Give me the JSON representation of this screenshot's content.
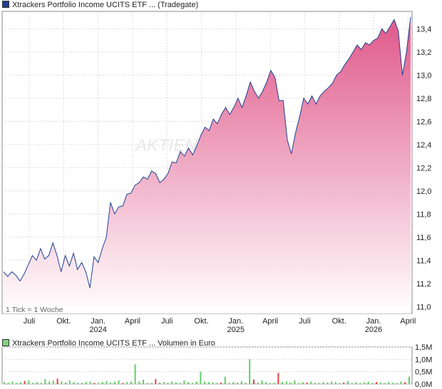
{
  "legend": {
    "price": "Xtrackers Portfolio Income UCITS ETF ... (Tradegate)",
    "volume": "Xtrackers Portfolio Income UCITS ETF ... Volumen in Euro"
  },
  "note": "1 Tick = 1 Woche",
  "watermark": "AKTIEN",
  "colors": {
    "line": "#1f3f8f",
    "fill_top": "#e0588a",
    "fill_bottom": "#ffffff",
    "vol_green": "#66cc66",
    "vol_red": "#dd4444"
  },
  "chart_data": [
    {
      "type": "area",
      "ylim": [
        10.94,
        13.55
      ],
      "yticks": [
        "11,0",
        "11,2",
        "11,4",
        "11,6",
        "11,8",
        "12,0",
        "12,2",
        "12,4",
        "12,6",
        "12,8",
        "13,0",
        "13,2",
        "13,4"
      ],
      "xticks": [
        {
          "label": "Juli",
          "sub": ""
        },
        {
          "label": "Okt.",
          "sub": ""
        },
        {
          "label": "Jan.",
          "sub": "2024"
        },
        {
          "label": "April",
          "sub": ""
        },
        {
          "label": "Juli",
          "sub": ""
        },
        {
          "label": "Okt.",
          "sub": ""
        },
        {
          "label": "Jan.",
          "sub": "2025"
        },
        {
          "label": "April",
          "sub": ""
        },
        {
          "label": "Juli",
          "sub": ""
        },
        {
          "label": "Okt.",
          "sub": ""
        },
        {
          "label": "Jan.",
          "sub": "2026"
        },
        {
          "label": "April",
          "sub": ""
        }
      ],
      "grid": true,
      "values": [
        11.3,
        11.26,
        11.3,
        11.27,
        11.22,
        11.28,
        11.36,
        11.44,
        11.4,
        11.5,
        11.41,
        11.44,
        11.55,
        11.44,
        11.3,
        11.44,
        11.35,
        11.46,
        11.32,
        11.38,
        11.3,
        11.16,
        11.43,
        11.38,
        11.5,
        11.6,
        11.9,
        11.8,
        11.86,
        11.87,
        11.97,
        11.98,
        12.05,
        12.07,
        12.12,
        12.1,
        12.17,
        12.15,
        12.07,
        12.1,
        12.15,
        12.25,
        12.24,
        12.34,
        12.3,
        12.37,
        12.31,
        12.39,
        12.48,
        12.55,
        12.52,
        12.62,
        12.58,
        12.66,
        12.72,
        12.66,
        12.72,
        12.8,
        12.72,
        12.82,
        12.94,
        12.86,
        12.8,
        12.86,
        12.94,
        13.04,
        12.98,
        12.78,
        12.78,
        12.44,
        12.32,
        12.5,
        12.64,
        12.8,
        12.75,
        12.82,
        12.75,
        12.82,
        12.86,
        12.89,
        12.93,
        13.0,
        13.03,
        13.09,
        13.14,
        13.2,
        13.26,
        13.22,
        13.28,
        13.26,
        13.3,
        13.32,
        13.4,
        13.36,
        13.42,
        13.48,
        13.38,
        13.0,
        13.2,
        13.5
      ]
    },
    {
      "type": "bar",
      "ylim": [
        0,
        1.5
      ],
      "yticks": [
        "1,5M",
        "1,0M",
        "0,5M",
        "0,0M"
      ],
      "values": [
        0.08,
        0.05,
        0.1,
        0.04,
        0.07,
        0.12,
        0.15,
        0.05,
        0.08,
        0.05,
        0.2,
        0.1,
        0.14,
        0.22,
        0.11,
        0.06,
        0.15,
        0.08,
        0.05,
        0.05,
        0.09,
        0.1,
        0.04,
        0.05,
        0.08,
        0.12,
        0.06,
        0.1,
        0.15,
        0.04,
        0.08,
        0.1,
        0.8,
        0.1,
        0.18,
        0.05,
        0.04,
        0.2,
        0.06,
        0.08,
        0.05,
        0.1,
        0.06,
        0.04,
        0.15,
        0.08,
        0.05,
        0.1,
        0.5,
        0.1,
        0.08,
        0.06,
        0.05,
        0.06,
        0.3,
        0.05,
        0.08,
        0.06,
        0.12,
        0.05,
        1.0,
        0.18,
        0.06,
        0.15,
        0.08,
        0.04,
        0.05,
        0.45,
        0.08,
        0.1,
        0.06,
        0.15,
        0.04,
        0.08,
        0.06,
        0.1,
        0.05,
        0.04,
        0.08,
        0.06,
        0.1,
        0.08,
        0.04,
        0.06,
        0.12,
        0.05,
        0.08,
        0.04,
        0.06,
        0.1,
        0.05,
        0.08,
        0.06,
        0.04,
        0.08,
        0.05,
        0.04,
        0.1,
        0.08,
        0.3
      ],
      "red": [
        5,
        13,
        22,
        29,
        37,
        53,
        61,
        67,
        74,
        83,
        91,
        98
      ]
    }
  ]
}
